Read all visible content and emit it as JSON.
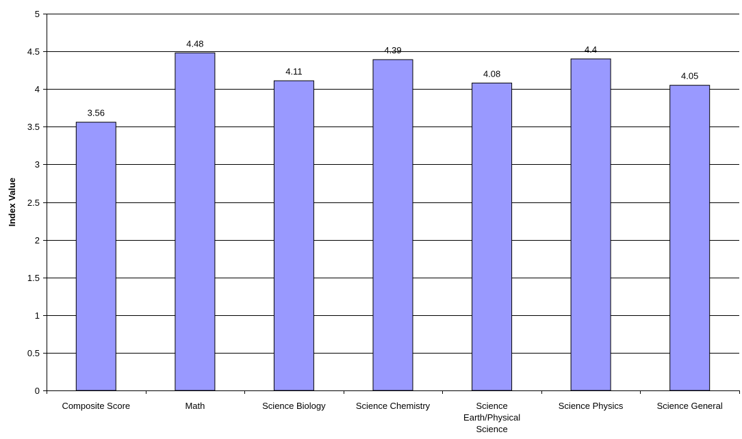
{
  "chart_data": {
    "type": "bar",
    "categories": [
      "Composite Score",
      "Math",
      "Science Biology",
      "Science  Chemistry",
      "Science Earth/Physical Science",
      "Science Physics",
      "Science General"
    ],
    "category_label_lines": [
      [
        "Composite Score"
      ],
      [
        "Math"
      ],
      [
        "Science Biology"
      ],
      [
        "Science  Chemistry"
      ],
      [
        "Science",
        "Earth/Physical",
        "Science"
      ],
      [
        "Science Physics"
      ],
      [
        "Science General"
      ]
    ],
    "values": [
      3.56,
      4.48,
      4.11,
      4.39,
      4.08,
      4.4,
      4.05
    ],
    "data_labels": [
      "3.56",
      "4.48",
      "4.11",
      "4.39",
      "4.08",
      "4.4",
      "4.05"
    ],
    "ylabel": "Index Value",
    "xlabel": "",
    "title": "",
    "ylim": [
      0,
      5
    ],
    "yticks": [
      "0",
      "0.5",
      "1",
      "1.5",
      "2",
      "2.5",
      "3",
      "3.5",
      "4",
      "4.5",
      "5"
    ],
    "grid": true,
    "legend": "none",
    "colors": {
      "bar_fill": "#9999ff",
      "bar_stroke": "#000000",
      "grid": "#000000"
    }
  }
}
